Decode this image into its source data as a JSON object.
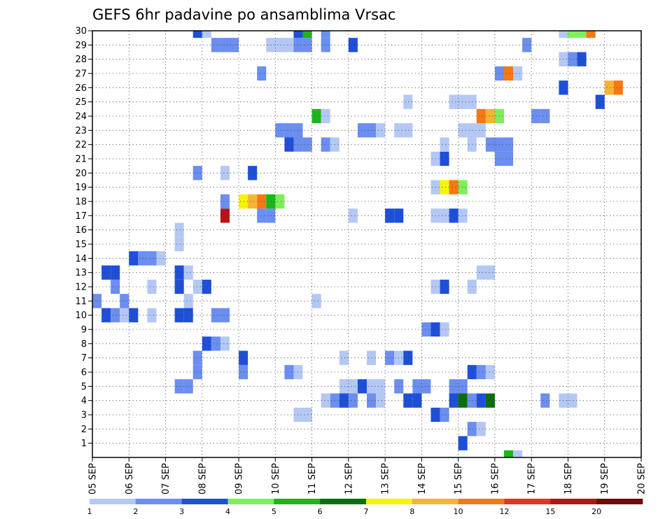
{
  "chart_data": {
    "type": "heatmap",
    "title": "GEFS 6hr padavine po ansamblima Vrsac",
    "x_labels": [
      "05 SEP",
      "06 SEP",
      "07 SEP",
      "08 SEP",
      "09 SEP",
      "10 SEP",
      "11 SEP",
      "12 SEP",
      "13 SEP",
      "14 SEP",
      "15 SEP",
      "16 SEP",
      "17 SEP",
      "18 SEP",
      "19 SEP",
      "20 SEP"
    ],
    "y_labels": [
      "1",
      "2",
      "3",
      "4",
      "5",
      "6",
      "7",
      "8",
      "9",
      "10",
      "11",
      "12",
      "13",
      "14",
      "15",
      "16",
      "17",
      "18",
      "19",
      "20",
      "21",
      "22",
      "23",
      "24",
      "25",
      "26",
      "27",
      "28",
      "29",
      "30"
    ],
    "x_range": [
      0,
      60
    ],
    "y_range": [
      0,
      30
    ],
    "time_step_hours": 6,
    "grid": "dotted",
    "colorbar": {
      "thresholds": [
        "1",
        "2",
        "3",
        "4",
        "5",
        "6",
        "7",
        "8",
        "10",
        "12",
        "15",
        "20"
      ],
      "colors": [
        "#b4c8f5",
        "#6b8ef0",
        "#1e4fd8",
        "#7cf05a",
        "#1eb41e",
        "#0a6e0a",
        "#f5f500",
        "#f5b432",
        "#f57814",
        "#e6321e",
        "#b41414",
        "#6e0a0a"
      ]
    },
    "cells": [
      {
        "t": 45,
        "m": 0,
        "b": 4
      },
      {
        "t": 46,
        "m": 0,
        "b": 0
      },
      {
        "t": 40,
        "m": 1,
        "b": 2
      },
      {
        "t": 41,
        "m": 2,
        "b": 1
      },
      {
        "t": 42,
        "m": 2,
        "b": 0
      },
      {
        "t": 22,
        "m": 3,
        "b": 0
      },
      {
        "t": 23,
        "m": 3,
        "b": 0
      },
      {
        "t": 37,
        "m": 3,
        "b": 2
      },
      {
        "t": 38,
        "m": 3,
        "b": 1
      },
      {
        "t": 25,
        "m": 4,
        "b": 0
      },
      {
        "t": 26,
        "m": 4,
        "b": 1
      },
      {
        "t": 27,
        "m": 4,
        "b": 2
      },
      {
        "t": 28,
        "m": 4,
        "b": 1
      },
      {
        "t": 30,
        "m": 4,
        "b": 1
      },
      {
        "t": 31,
        "m": 4,
        "b": 0
      },
      {
        "t": 34,
        "m": 4,
        "b": 2
      },
      {
        "t": 35,
        "m": 4,
        "b": 2
      },
      {
        "t": 39,
        "m": 4,
        "b": 2
      },
      {
        "t": 40,
        "m": 4,
        "b": 5
      },
      {
        "t": 41,
        "m": 4,
        "b": 1
      },
      {
        "t": 42,
        "m": 4,
        "b": 2
      },
      {
        "t": 43,
        "m": 4,
        "b": 5
      },
      {
        "t": 49,
        "m": 4,
        "b": 1
      },
      {
        "t": 51,
        "m": 4,
        "b": 0
      },
      {
        "t": 52,
        "m": 4,
        "b": 0
      },
      {
        "t": 9,
        "m": 5,
        "b": 1
      },
      {
        "t": 10,
        "m": 5,
        "b": 1
      },
      {
        "t": 27,
        "m": 5,
        "b": 0
      },
      {
        "t": 28,
        "m": 5,
        "b": 0
      },
      {
        "t": 29,
        "m": 5,
        "b": 2
      },
      {
        "t": 30,
        "m": 5,
        "b": 0
      },
      {
        "t": 31,
        "m": 5,
        "b": 0
      },
      {
        "t": 33,
        "m": 5,
        "b": 1
      },
      {
        "t": 35,
        "m": 5,
        "b": 1
      },
      {
        "t": 36,
        "m": 5,
        "b": 1
      },
      {
        "t": 39,
        "m": 5,
        "b": 1
      },
      {
        "t": 40,
        "m": 5,
        "b": 1
      },
      {
        "t": 11,
        "m": 6,
        "b": 1
      },
      {
        "t": 16,
        "m": 6,
        "b": 1
      },
      {
        "t": 21,
        "m": 6,
        "b": 1
      },
      {
        "t": 22,
        "m": 6,
        "b": 0
      },
      {
        "t": 41,
        "m": 6,
        "b": 2
      },
      {
        "t": 42,
        "m": 6,
        "b": 1
      },
      {
        "t": 43,
        "m": 6,
        "b": 0
      },
      {
        "t": 11,
        "m": 7,
        "b": 1
      },
      {
        "t": 16,
        "m": 7,
        "b": 2
      },
      {
        "t": 27,
        "m": 7,
        "b": 0
      },
      {
        "t": 30,
        "m": 7,
        "b": 0
      },
      {
        "t": 32,
        "m": 7,
        "b": 1
      },
      {
        "t": 33,
        "m": 7,
        "b": 0
      },
      {
        "t": 34,
        "m": 7,
        "b": 2
      },
      {
        "t": 12,
        "m": 8,
        "b": 2
      },
      {
        "t": 13,
        "m": 8,
        "b": 1
      },
      {
        "t": 14,
        "m": 8,
        "b": 0
      },
      {
        "t": 36,
        "m": 9,
        "b": 1
      },
      {
        "t": 37,
        "m": 9,
        "b": 2
      },
      {
        "t": 38,
        "m": 9,
        "b": 0
      },
      {
        "t": 1,
        "m": 10,
        "b": 2
      },
      {
        "t": 2,
        "m": 10,
        "b": 1
      },
      {
        "t": 3,
        "m": 10,
        "b": 0
      },
      {
        "t": 4,
        "m": 10,
        "b": 2
      },
      {
        "t": 6,
        "m": 10,
        "b": 0
      },
      {
        "t": 9,
        "m": 10,
        "b": 2
      },
      {
        "t": 10,
        "m": 10,
        "b": 2
      },
      {
        "t": 13,
        "m": 10,
        "b": 1
      },
      {
        "t": 14,
        "m": 10,
        "b": 1
      },
      {
        "t": 0,
        "m": 11,
        "b": 1
      },
      {
        "t": 3,
        "m": 11,
        "b": 1
      },
      {
        "t": 10,
        "m": 11,
        "b": 0
      },
      {
        "t": 24,
        "m": 11,
        "b": 0
      },
      {
        "t": 2,
        "m": 12,
        "b": 1
      },
      {
        "t": 6,
        "m": 12,
        "b": 0
      },
      {
        "t": 9,
        "m": 12,
        "b": 2
      },
      {
        "t": 11,
        "m": 12,
        "b": 0
      },
      {
        "t": 12,
        "m": 12,
        "b": 2
      },
      {
        "t": 37,
        "m": 12,
        "b": 0
      },
      {
        "t": 38,
        "m": 12,
        "b": 2
      },
      {
        "t": 41,
        "m": 12,
        "b": 0
      },
      {
        "t": 1,
        "m": 13,
        "b": 2
      },
      {
        "t": 2,
        "m": 13,
        "b": 2
      },
      {
        "t": 9,
        "m": 13,
        "b": 2
      },
      {
        "t": 10,
        "m": 13,
        "b": 0
      },
      {
        "t": 42,
        "m": 13,
        "b": 0
      },
      {
        "t": 43,
        "m": 13,
        "b": 0
      },
      {
        "t": 4,
        "m": 14,
        "b": 2
      },
      {
        "t": 5,
        "m": 14,
        "b": 1
      },
      {
        "t": 6,
        "m": 14,
        "b": 1
      },
      {
        "t": 7,
        "m": 14,
        "b": 0
      },
      {
        "t": 9,
        "m": 15,
        "b": 0
      },
      {
        "t": 9,
        "m": 16,
        "b": 0
      },
      {
        "t": 14,
        "m": 17,
        "b": 10
      },
      {
        "t": 18,
        "m": 17,
        "b": 1
      },
      {
        "t": 19,
        "m": 17,
        "b": 1
      },
      {
        "t": 28,
        "m": 17,
        "b": 0
      },
      {
        "t": 32,
        "m": 17,
        "b": 2
      },
      {
        "t": 33,
        "m": 17,
        "b": 2
      },
      {
        "t": 37,
        "m": 17,
        "b": 0
      },
      {
        "t": 38,
        "m": 17,
        "b": 0
      },
      {
        "t": 39,
        "m": 17,
        "b": 2
      },
      {
        "t": 40,
        "m": 17,
        "b": 0
      },
      {
        "t": 14,
        "m": 18,
        "b": 1
      },
      {
        "t": 16,
        "m": 18,
        "b": 6
      },
      {
        "t": 17,
        "m": 18,
        "b": 7
      },
      {
        "t": 18,
        "m": 18,
        "b": 8
      },
      {
        "t": 19,
        "m": 18,
        "b": 4
      },
      {
        "t": 20,
        "m": 18,
        "b": 3
      },
      {
        "t": 37,
        "m": 19,
        "b": 0
      },
      {
        "t": 38,
        "m": 19,
        "b": 6
      },
      {
        "t": 39,
        "m": 19,
        "b": 8
      },
      {
        "t": 40,
        "m": 19,
        "b": 3
      },
      {
        "t": 11,
        "m": 20,
        "b": 1
      },
      {
        "t": 14,
        "m": 20,
        "b": 0
      },
      {
        "t": 17,
        "m": 20,
        "b": 2
      },
      {
        "t": 37,
        "m": 21,
        "b": 0
      },
      {
        "t": 38,
        "m": 21,
        "b": 2
      },
      {
        "t": 44,
        "m": 21,
        "b": 1
      },
      {
        "t": 45,
        "m": 21,
        "b": 1
      },
      {
        "t": 21,
        "m": 22,
        "b": 2
      },
      {
        "t": 22,
        "m": 22,
        "b": 1
      },
      {
        "t": 23,
        "m": 22,
        "b": 1
      },
      {
        "t": 25,
        "m": 22,
        "b": 1
      },
      {
        "t": 26,
        "m": 22,
        "b": 0
      },
      {
        "t": 38,
        "m": 22,
        "b": 0
      },
      {
        "t": 41,
        "m": 22,
        "b": 0
      },
      {
        "t": 43,
        "m": 22,
        "b": 1
      },
      {
        "t": 44,
        "m": 22,
        "b": 1
      },
      {
        "t": 45,
        "m": 22,
        "b": 1
      },
      {
        "t": 20,
        "m": 23,
        "b": 1
      },
      {
        "t": 21,
        "m": 23,
        "b": 1
      },
      {
        "t": 22,
        "m": 23,
        "b": 1
      },
      {
        "t": 29,
        "m": 23,
        "b": 1
      },
      {
        "t": 30,
        "m": 23,
        "b": 1
      },
      {
        "t": 31,
        "m": 23,
        "b": 0
      },
      {
        "t": 33,
        "m": 23,
        "b": 0
      },
      {
        "t": 34,
        "m": 23,
        "b": 0
      },
      {
        "t": 40,
        "m": 23,
        "b": 0
      },
      {
        "t": 41,
        "m": 23,
        "b": 0
      },
      {
        "t": 42,
        "m": 23,
        "b": 0
      },
      {
        "t": 24,
        "m": 24,
        "b": 4
      },
      {
        "t": 25,
        "m": 24,
        "b": 0
      },
      {
        "t": 42,
        "m": 24,
        "b": 8
      },
      {
        "t": 43,
        "m": 24,
        "b": 7
      },
      {
        "t": 44,
        "m": 24,
        "b": 3
      },
      {
        "t": 48,
        "m": 24,
        "b": 1
      },
      {
        "t": 49,
        "m": 24,
        "b": 1
      },
      {
        "t": 34,
        "m": 25,
        "b": 0
      },
      {
        "t": 39,
        "m": 25,
        "b": 0
      },
      {
        "t": 40,
        "m": 25,
        "b": 0
      },
      {
        "t": 41,
        "m": 25,
        "b": 0
      },
      {
        "t": 55,
        "m": 25,
        "b": 2
      },
      {
        "t": 51,
        "m": 26,
        "b": 2
      },
      {
        "t": 56,
        "m": 26,
        "b": 7
      },
      {
        "t": 57,
        "m": 26,
        "b": 8
      },
      {
        "t": 18,
        "m": 27,
        "b": 1
      },
      {
        "t": 44,
        "m": 27,
        "b": 1
      },
      {
        "t": 45,
        "m": 27,
        "b": 8
      },
      {
        "t": 46,
        "m": 27,
        "b": 0
      },
      {
        "t": 51,
        "m": 28,
        "b": 0
      },
      {
        "t": 52,
        "m": 28,
        "b": 1
      },
      {
        "t": 53,
        "m": 28,
        "b": 2
      },
      {
        "t": 13,
        "m": 29,
        "b": 1
      },
      {
        "t": 14,
        "m": 29,
        "b": 1
      },
      {
        "t": 15,
        "m": 29,
        "b": 1
      },
      {
        "t": 19,
        "m": 29,
        "b": 0
      },
      {
        "t": 20,
        "m": 29,
        "b": 0
      },
      {
        "t": 21,
        "m": 29,
        "b": 0
      },
      {
        "t": 22,
        "m": 29,
        "b": 1
      },
      {
        "t": 23,
        "m": 29,
        "b": 1
      },
      {
        "t": 25,
        "m": 29,
        "b": 1
      },
      {
        "t": 28,
        "m": 29,
        "b": 2
      },
      {
        "t": 47,
        "m": 29,
        "b": 1
      },
      {
        "t": 11,
        "m": 30,
        "b": 2
      },
      {
        "t": 12,
        "m": 30,
        "b": 0
      },
      {
        "t": 22,
        "m": 30,
        "b": 2
      },
      {
        "t": 23,
        "m": 30,
        "b": 4
      },
      {
        "t": 25,
        "m": 30,
        "b": 1
      },
      {
        "t": 51,
        "m": 30,
        "b": 0
      },
      {
        "t": 52,
        "m": 30,
        "b": 3
      },
      {
        "t": 53,
        "m": 30,
        "b": 3
      },
      {
        "t": 54,
        "m": 30,
        "b": 8
      }
    ]
  }
}
